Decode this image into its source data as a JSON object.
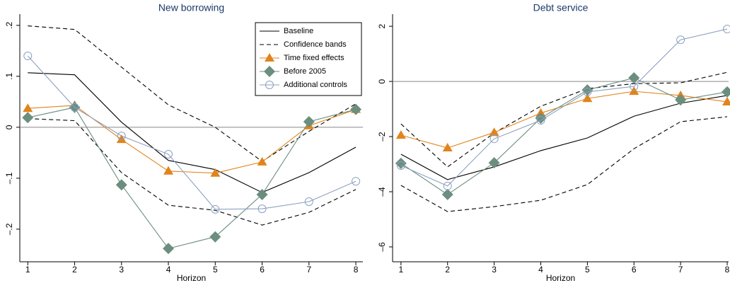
{
  "chart_data": [
    {
      "type": "line",
      "title": "New borrowing",
      "x_label": "Horizon",
      "x": [
        1,
        2,
        3,
        4,
        5,
        6,
        7,
        8
      ],
      "xlim": [
        0.83,
        8.15
      ],
      "xticks": [
        1,
        2,
        3,
        4,
        5,
        6,
        7,
        8
      ],
      "ylim": [
        -0.264,
        0.222
      ],
      "yticks": [
        {
          "value": -0.2,
          "label": "–.2"
        },
        {
          "value": -0.1,
          "label": "–.1"
        },
        0,
        {
          "value": 0.1,
          "label": ".1"
        },
        {
          "value": 0.2,
          "label": ".2"
        }
      ],
      "hline": 0,
      "legend": "top-right",
      "series": [
        {
          "name": "Baseline",
          "color": "#000000",
          "dash": false,
          "marker": null,
          "values": [
            0.107,
            0.103,
            0.01,
            -0.065,
            -0.083,
            -0.128,
            -0.089,
            -0.039
          ]
        },
        {
          "name": "Confidence bands",
          "color": "#000000",
          "dash": true,
          "marker": null,
          "upper": [
            0.199,
            0.192,
            0.118,
            0.044,
            0.0,
            -0.067,
            -0.008,
            0.046
          ],
          "lower": [
            0.017,
            0.013,
            -0.089,
            -0.153,
            -0.163,
            -0.192,
            -0.167,
            -0.122
          ]
        },
        {
          "name": "Time fixed effects",
          "color": "#e0841c",
          "dash": false,
          "marker": "triangle",
          "values": [
            0.037,
            0.043,
            -0.024,
            -0.086,
            -0.09,
            -0.068,
            0.003,
            0.035
          ]
        },
        {
          "name": "Before 2005",
          "color": "#6b8e7f",
          "dash": false,
          "marker": "diamond",
          "values": [
            0.019,
            0.039,
            -0.113,
            -0.238,
            -0.215,
            -0.132,
            0.011,
            0.035
          ]
        },
        {
          "name": "Additional controls",
          "color": "#8ca0c0",
          "dash": false,
          "marker": "circle",
          "values": [
            0.14,
            0.039,
            -0.017,
            -0.053,
            -0.161,
            -0.16,
            -0.146,
            -0.106
          ]
        }
      ]
    },
    {
      "type": "line",
      "title": "Debt service",
      "x_label": "Horizon",
      "x": [
        1,
        2,
        3,
        4,
        5,
        6,
        7,
        8
      ],
      "xlim": [
        0.82,
        8.03
      ],
      "xticks": [
        1,
        2,
        3,
        4,
        5,
        6,
        7,
        8
      ],
      "ylim": [
        -6.54,
        2.44
      ],
      "yticks": [
        {
          "value": -6,
          "label": "–6"
        },
        {
          "value": -4,
          "label": "–4"
        },
        {
          "value": -2,
          "label": "–2"
        },
        0,
        2
      ],
      "hline": 0,
      "series": [
        {
          "color": "#000000",
          "dash": false,
          "marker": null,
          "values": [
            -2.64,
            -3.56,
            -3.1,
            -2.51,
            -2.05,
            -1.26,
            -0.79,
            -0.51
          ]
        },
        {
          "color": "#000000",
          "dash": true,
          "marker": null,
          "upper": [
            -1.54,
            -3.1,
            -1.87,
            -0.9,
            -0.26,
            -0.08,
            -0.05,
            0.33
          ],
          "lower": [
            -3.77,
            -4.72,
            -4.54,
            -4.31,
            -3.74,
            -2.44,
            -1.46,
            -1.28
          ]
        },
        {
          "color": "#e0841c",
          "dash": false,
          "marker": "triangle",
          "values": [
            -1.95,
            -2.41,
            -1.85,
            -1.15,
            -0.62,
            -0.36,
            -0.51,
            -0.74
          ]
        },
        {
          "color": "#6b8e7f",
          "dash": false,
          "marker": "diamond",
          "values": [
            -2.97,
            -4.1,
            -2.95,
            -1.33,
            -0.31,
            0.13,
            -0.67,
            -0.38
          ]
        },
        {
          "color": "#8ca0c0",
          "dash": false,
          "marker": "circle",
          "values": [
            -3.05,
            -3.79,
            -2.08,
            -1.41,
            -0.38,
            -0.18,
            1.51,
            1.9
          ]
        }
      ]
    }
  ]
}
